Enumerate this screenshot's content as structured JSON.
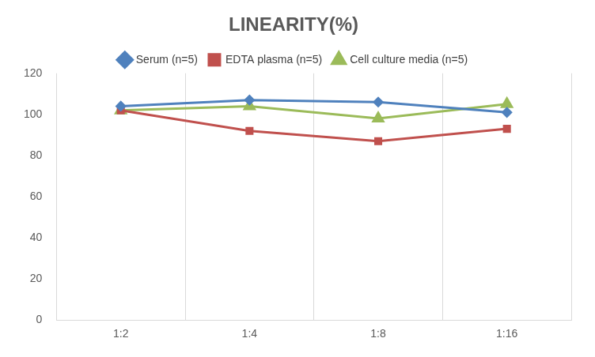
{
  "chart_data": {
    "type": "line",
    "title": "LINEARITY(%)",
    "categories": [
      "1:2",
      "1:4",
      "1:8",
      "1:16"
    ],
    "series": [
      {
        "name": "Serum (n=5)",
        "color": "#4f81bd",
        "marker": "diamond",
        "values": [
          104,
          107,
          106,
          101
        ]
      },
      {
        "name": "EDTA plasma (n=5)",
        "color": "#c0504d",
        "marker": "square",
        "values": [
          102,
          92,
          87,
          93
        ]
      },
      {
        "name": "Cell culture media (n=5)",
        "color": "#9bbb59",
        "marker": "triangle",
        "values": [
          102,
          104,
          98,
          105
        ]
      }
    ],
    "ylim": [
      0,
      120
    ],
    "yticks": [
      0,
      20,
      40,
      60,
      80,
      100,
      120
    ],
    "grid": true,
    "legend": "top"
  }
}
